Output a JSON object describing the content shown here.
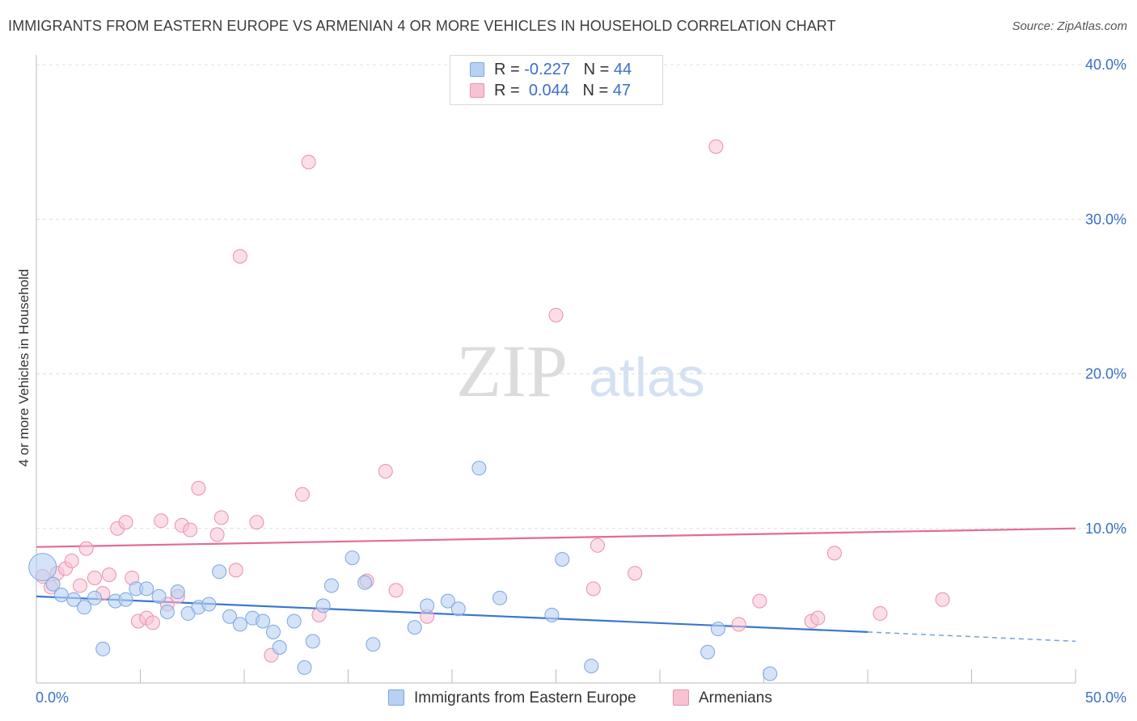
{
  "header": {
    "title": "IMMIGRANTS FROM EASTERN EUROPE VS ARMENIAN 4 OR MORE VEHICLES IN HOUSEHOLD CORRELATION CHART",
    "source": "Source: ZipAtlas.com"
  },
  "watermark": {
    "part1": "ZIP",
    "part2": "atlas"
  },
  "legend_top": {
    "rows": [
      {
        "r_label": "R = ",
        "r_value": "-0.227",
        "n_label": "N = ",
        "n_value": "44"
      },
      {
        "r_label": "R = ",
        "r_value": "0.044",
        "n_label": "N = ",
        "n_value": "47"
      }
    ]
  },
  "legend_bottom": {
    "items": [
      {
        "label": "Immigrants from Eastern Europe"
      },
      {
        "label": "Armenians"
      }
    ]
  },
  "colors": {
    "blue_fill": "#b7d1f3",
    "blue_stroke": "#7aa6e0",
    "blue_line": "#3a76d0",
    "pink_fill": "#f7c3d3",
    "pink_stroke": "#ea90ab",
    "pink_line": "#e46b94",
    "axis_text": "#3a6fc8"
  },
  "chart_data": {
    "type": "scatter",
    "title": "IMMIGRANTS FROM EASTERN EUROPE VS ARMENIAN 4 OR MORE VEHICLES IN HOUSEHOLD CORRELATION CHART",
    "xlabel": "",
    "ylabel": "4 or more Vehicles in Household",
    "xlim": [
      0,
      50
    ],
    "ylim": [
      0,
      40
    ],
    "x_tick_labels": [
      "0.0%",
      "50.0%"
    ],
    "y_ticks": [
      10,
      20,
      30,
      40
    ],
    "y_tick_labels": [
      "10.0%",
      "20.0%",
      "30.0%",
      "40.0%"
    ],
    "grid": "horizontal dashed",
    "legend_position": "top-center and bottom",
    "series": [
      {
        "name": "Immigrants from Eastern Europe",
        "color": "#b7d1f3",
        "r": -0.227,
        "n": 44,
        "trend": {
          "x": [
            0,
            40
          ],
          "y": [
            5.6,
            3.3
          ],
          "dashed_extension_to_x": 50,
          "dashed_extension_y": 2.7
        },
        "points": [
          {
            "x": 0.3,
            "y": 7.5,
            "big": true
          },
          {
            "x": 0.8,
            "y": 6.4
          },
          {
            "x": 1.2,
            "y": 5.7
          },
          {
            "x": 1.8,
            "y": 5.4
          },
          {
            "x": 2.3,
            "y": 4.9
          },
          {
            "x": 2.8,
            "y": 5.5
          },
          {
            "x": 3.2,
            "y": 2.2
          },
          {
            "x": 3.8,
            "y": 5.3
          },
          {
            "x": 4.3,
            "y": 5.4
          },
          {
            "x": 4.8,
            "y": 6.1
          },
          {
            "x": 5.3,
            "y": 6.1
          },
          {
            "x": 5.9,
            "y": 5.6
          },
          {
            "x": 6.3,
            "y": 4.6
          },
          {
            "x": 6.8,
            "y": 5.9
          },
          {
            "x": 7.3,
            "y": 4.5
          },
          {
            "x": 7.8,
            "y": 4.9
          },
          {
            "x": 8.3,
            "y": 5.1
          },
          {
            "x": 8.8,
            "y": 7.2
          },
          {
            "x": 9.3,
            "y": 4.3
          },
          {
            "x": 9.8,
            "y": 3.8
          },
          {
            "x": 10.4,
            "y": 4.2
          },
          {
            "x": 10.9,
            "y": 4.0
          },
          {
            "x": 11.4,
            "y": 3.3
          },
          {
            "x": 11.7,
            "y": 2.3
          },
          {
            "x": 12.4,
            "y": 4.0
          },
          {
            "x": 12.9,
            "y": 1.0
          },
          {
            "x": 13.3,
            "y": 2.7
          },
          {
            "x": 13.8,
            "y": 5.0
          },
          {
            "x": 14.2,
            "y": 6.3
          },
          {
            "x": 15.2,
            "y": 8.1
          },
          {
            "x": 15.8,
            "y": 6.5
          },
          {
            "x": 16.2,
            "y": 2.5
          },
          {
            "x": 18.2,
            "y": 3.6
          },
          {
            "x": 18.8,
            "y": 5.0
          },
          {
            "x": 19.8,
            "y": 5.3
          },
          {
            "x": 20.3,
            "y": 4.8
          },
          {
            "x": 21.3,
            "y": 13.9
          },
          {
            "x": 22.3,
            "y": 5.5
          },
          {
            "x": 24.8,
            "y": 4.4
          },
          {
            "x": 25.3,
            "y": 8.0
          },
          {
            "x": 26.7,
            "y": 1.1
          },
          {
            "x": 32.3,
            "y": 2.0
          },
          {
            "x": 32.8,
            "y": 3.5
          },
          {
            "x": 35.3,
            "y": 0.6
          }
        ]
      },
      {
        "name": "Armenians",
        "color": "#f7c3d3",
        "r": 0.044,
        "n": 47,
        "trend": {
          "x": [
            0,
            50
          ],
          "y": [
            8.8,
            10.0
          ]
        },
        "points": [
          {
            "x": 0.3,
            "y": 6.9
          },
          {
            "x": 0.7,
            "y": 6.2
          },
          {
            "x": 1.0,
            "y": 7.1
          },
          {
            "x": 1.4,
            "y": 7.4
          },
          {
            "x": 1.7,
            "y": 7.9
          },
          {
            "x": 2.1,
            "y": 6.3
          },
          {
            "x": 2.4,
            "y": 8.7
          },
          {
            "x": 2.8,
            "y": 6.8
          },
          {
            "x": 3.2,
            "y": 5.8
          },
          {
            "x": 3.5,
            "y": 7.0
          },
          {
            "x": 3.9,
            "y": 10.0
          },
          {
            "x": 4.3,
            "y": 10.4
          },
          {
            "x": 4.6,
            "y": 6.8
          },
          {
            "x": 4.9,
            "y": 4.0
          },
          {
            "x": 5.3,
            "y": 4.2
          },
          {
            "x": 5.6,
            "y": 3.9
          },
          {
            "x": 6.0,
            "y": 10.5
          },
          {
            "x": 6.3,
            "y": 5.1
          },
          {
            "x": 6.8,
            "y": 5.6
          },
          {
            "x": 7.0,
            "y": 10.2
          },
          {
            "x": 7.4,
            "y": 9.9
          },
          {
            "x": 7.8,
            "y": 12.6
          },
          {
            "x": 8.7,
            "y": 9.6
          },
          {
            "x": 8.9,
            "y": 10.7
          },
          {
            "x": 9.6,
            "y": 7.3
          },
          {
            "x": 9.8,
            "y": 27.6
          },
          {
            "x": 10.6,
            "y": 10.4
          },
          {
            "x": 11.3,
            "y": 1.8
          },
          {
            "x": 12.8,
            "y": 12.2
          },
          {
            "x": 13.1,
            "y": 33.7
          },
          {
            "x": 13.6,
            "y": 4.4
          },
          {
            "x": 15.9,
            "y": 6.6
          },
          {
            "x": 16.8,
            "y": 13.7
          },
          {
            "x": 17.3,
            "y": 6.0
          },
          {
            "x": 18.8,
            "y": 4.3
          },
          {
            "x": 25.0,
            "y": 23.8
          },
          {
            "x": 26.8,
            "y": 6.1
          },
          {
            "x": 27.0,
            "y": 8.9
          },
          {
            "x": 28.8,
            "y": 7.1
          },
          {
            "x": 32.7,
            "y": 34.7
          },
          {
            "x": 33.8,
            "y": 3.8
          },
          {
            "x": 34.8,
            "y": 5.3
          },
          {
            "x": 37.3,
            "y": 4.0
          },
          {
            "x": 37.6,
            "y": 4.2
          },
          {
            "x": 38.4,
            "y": 8.4
          },
          {
            "x": 40.6,
            "y": 4.5
          },
          {
            "x": 43.6,
            "y": 5.4
          }
        ]
      }
    ]
  }
}
